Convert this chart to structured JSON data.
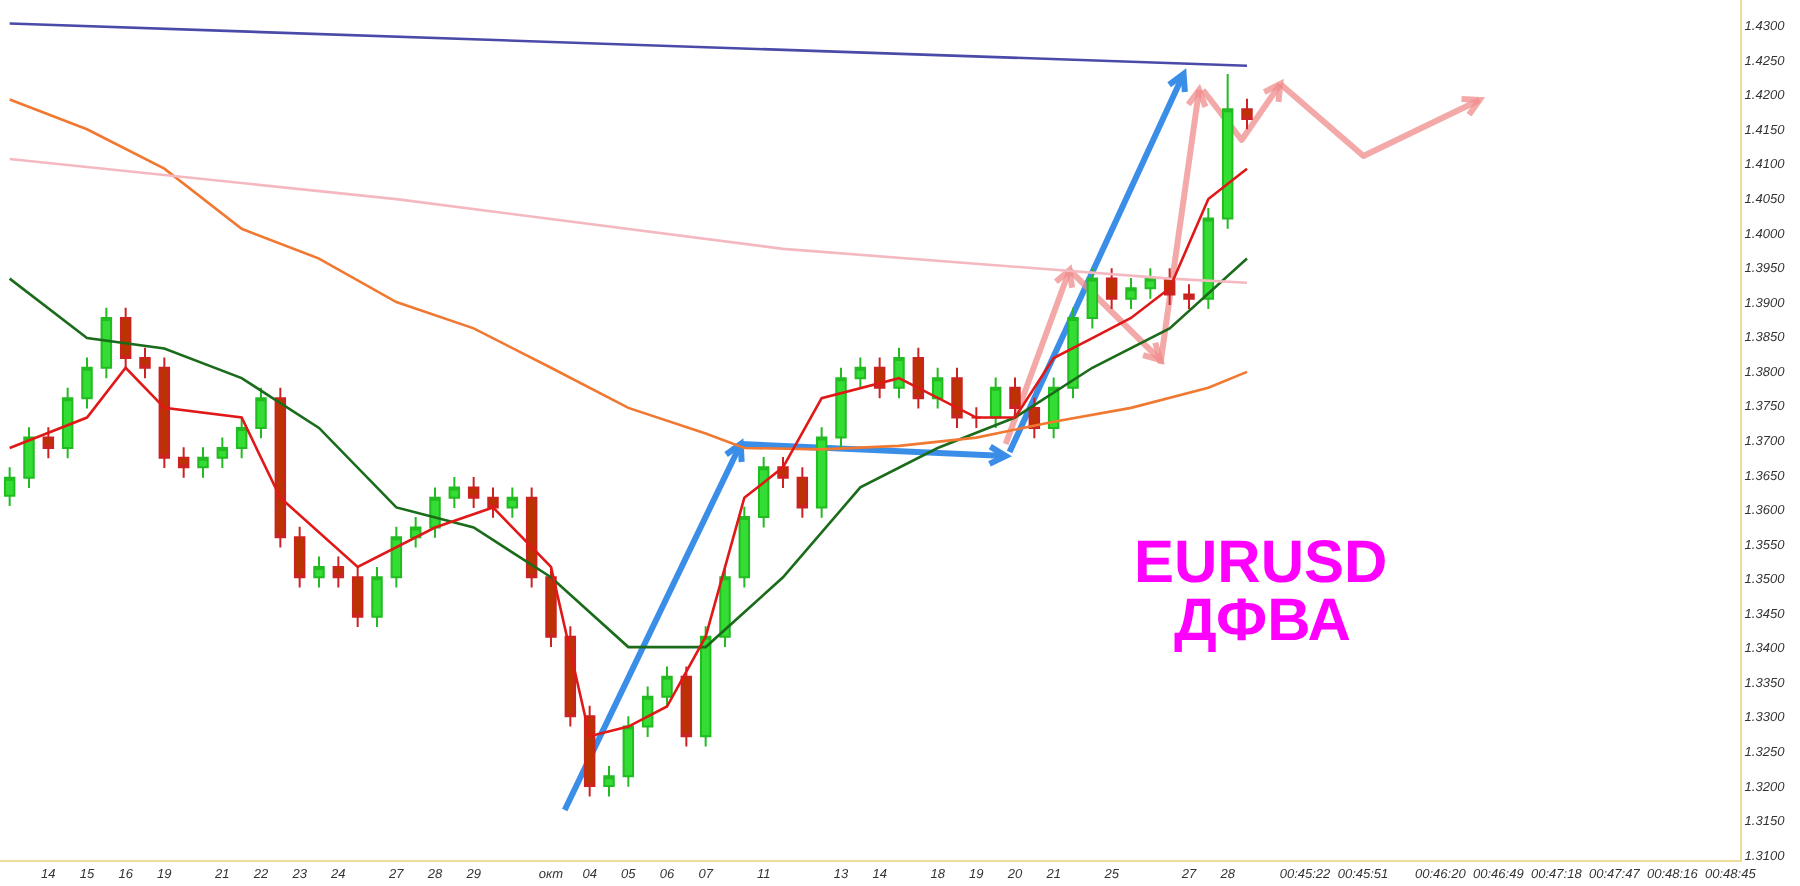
{
  "chart_data": {
    "type": "candlestick",
    "categories": [
      null,
      null,
      "14",
      null,
      "15",
      null,
      "16",
      null,
      "19",
      null,
      null,
      "21",
      null,
      "22",
      null,
      "23",
      null,
      "24",
      null,
      null,
      "27",
      null,
      "28",
      null,
      "29",
      null,
      null,
      null,
      "окт",
      null,
      "04",
      null,
      "05",
      null,
      "06",
      null,
      "07",
      null,
      null,
      "11",
      null,
      null,
      null,
      "13",
      null,
      "14",
      null,
      null,
      "18",
      null,
      "19",
      null,
      "20",
      null,
      "21",
      null,
      null,
      "25",
      null,
      null,
      null,
      "27",
      null,
      "28",
      null,
      null,
      null,
      "00:45:22",
      null,
      null,
      "00:45:51",
      null,
      null,
      null,
      "00:46:20",
      null,
      null,
      "00:46:49",
      null,
      null,
      "00:47:18",
      null,
      null,
      "00:47:47",
      null,
      null,
      "00:48:16",
      null,
      null,
      "00:48:45"
    ],
    "ohlc": [
      [
        1.362,
        1.3661,
        1.3605,
        1.3646
      ],
      [
        1.3646,
        1.3719,
        1.3631,
        1.3704
      ],
      [
        1.3704,
        1.3719,
        1.3674,
        1.3689
      ],
      [
        1.3689,
        1.3776,
        1.3674,
        1.3761
      ],
      [
        1.3761,
        1.382,
        1.3746,
        1.3805
      ],
      [
        1.3805,
        1.3892,
        1.379,
        1.3877
      ],
      [
        1.3877,
        1.3892,
        1.3804,
        1.3819
      ],
      [
        1.3819,
        1.3834,
        1.379,
        1.3805
      ],
      [
        1.3805,
        1.382,
        1.366,
        1.3675
      ],
      [
        1.3675,
        1.369,
        1.3646,
        1.3661
      ],
      [
        1.3661,
        1.369,
        1.3646,
        1.3675
      ],
      [
        1.3675,
        1.3704,
        1.366,
        1.3689
      ],
      [
        1.3689,
        1.3733,
        1.3674,
        1.3718
      ],
      [
        1.3718,
        1.3776,
        1.3703,
        1.3761
      ],
      [
        1.3761,
        1.3776,
        1.3545,
        1.356
      ],
      [
        1.356,
        1.3575,
        1.3487,
        1.3502
      ],
      [
        1.3502,
        1.3532,
        1.3487,
        1.3517
      ],
      [
        1.3517,
        1.3532,
        1.3487,
        1.3502
      ],
      [
        1.3502,
        1.3517,
        1.343,
        1.3445
      ],
      [
        1.3445,
        1.3517,
        1.343,
        1.3502
      ],
      [
        1.3502,
        1.3575,
        1.3487,
        1.356
      ],
      [
        1.356,
        1.3589,
        1.3545,
        1.3574
      ],
      [
        1.3574,
        1.3632,
        1.3559,
        1.3617
      ],
      [
        1.3617,
        1.3647,
        1.3602,
        1.3632
      ],
      [
        1.3632,
        1.3647,
        1.3602,
        1.3617
      ],
      [
        1.3617,
        1.3632,
        1.3588,
        1.3603
      ],
      [
        1.3603,
        1.3632,
        1.3588,
        1.3617
      ],
      [
        1.3617,
        1.3632,
        1.3487,
        1.3502
      ],
      [
        1.3502,
        1.3517,
        1.3401,
        1.3416
      ],
      [
        1.3416,
        1.3431,
        1.3286,
        1.3301
      ],
      [
        1.3301,
        1.3316,
        1.3185,
        1.32
      ],
      [
        1.32,
        1.3229,
        1.3185,
        1.3214
      ],
      [
        1.3214,
        1.3301,
        1.3199,
        1.3286
      ],
      [
        1.3286,
        1.3344,
        1.3271,
        1.3329
      ],
      [
        1.3329,
        1.3373,
        1.3314,
        1.3358
      ],
      [
        1.3358,
        1.3373,
        1.3257,
        1.3272
      ],
      [
        1.3272,
        1.3431,
        1.3257,
        1.3416
      ],
      [
        1.3416,
        1.3517,
        1.3401,
        1.3502
      ],
      [
        1.3502,
        1.3604,
        1.3487,
        1.3589
      ],
      [
        1.3589,
        1.3676,
        1.3574,
        1.3661
      ],
      [
        1.3661,
        1.3676,
        1.3631,
        1.3646
      ],
      [
        1.3646,
        1.3661,
        1.3588,
        1.3603
      ],
      [
        1.3603,
        1.3719,
        1.3588,
        1.3704
      ],
      [
        1.3704,
        1.3805,
        1.3689,
        1.379
      ],
      [
        1.379,
        1.382,
        1.3775,
        1.3805
      ],
      [
        1.3805,
        1.382,
        1.3761,
        1.3776
      ],
      [
        1.3776,
        1.3834,
        1.3761,
        1.3819
      ],
      [
        1.3819,
        1.3834,
        1.3746,
        1.3761
      ],
      [
        1.3761,
        1.3805,
        1.3746,
        1.379
      ],
      [
        1.379,
        1.3805,
        1.3718,
        1.3733
      ],
      [
        1.3733,
        1.3748,
        1.3718,
        1.3733
      ],
      [
        1.3733,
        1.3791,
        1.3718,
        1.3776
      ],
      [
        1.3776,
        1.3791,
        1.3732,
        1.3747
      ],
      [
        1.3747,
        1.3762,
        1.3703,
        1.3718
      ],
      [
        1.3718,
        1.3791,
        1.3703,
        1.3776
      ],
      [
        1.3776,
        1.3892,
        1.3761,
        1.3877
      ],
      [
        1.3877,
        1.3949,
        1.3862,
        1.3934
      ],
      [
        1.3934,
        1.3949,
        1.389,
        1.3905
      ],
      [
        1.3905,
        1.3935,
        1.389,
        1.392
      ],
      [
        1.392,
        1.3949,
        1.3905,
        1.3934
      ],
      [
        1.3934,
        1.3949,
        1.3896,
        1.3911
      ],
      [
        1.3911,
        1.3926,
        1.389,
        1.3905
      ],
      [
        1.3905,
        1.4036,
        1.389,
        1.4021
      ],
      [
        1.4021,
        1.423,
        1.4006,
        1.4179
      ],
      [
        1.4179,
        1.4194,
        1.415,
        1.4165
      ],
      null,
      null,
      null,
      null,
      null,
      null,
      null,
      null,
      null,
      null,
      null,
      null,
      null,
      null,
      null,
      null,
      null,
      null,
      null,
      null,
      null,
      null,
      null,
      null,
      null
    ],
    "series": [
      {
        "type": "line",
        "color": "#1a6b1a",
        "values": [
          1.3934,
          null,
          null,
          null,
          1.3848,
          null,
          null,
          null,
          1.3833,
          null,
          null,
          null,
          1.379,
          null,
          null,
          null,
          1.3718,
          null,
          null,
          null,
          1.3603,
          null,
          null,
          null,
          1.3574,
          null,
          null,
          null,
          1.3502,
          null,
          null,
          null,
          1.3401,
          null,
          null,
          null,
          1.3401,
          null,
          null,
          null,
          1.3502,
          null,
          null,
          null,
          1.3632,
          null,
          null,
          null,
          1.3689,
          null,
          null,
          null,
          1.3733,
          null,
          null,
          null,
          1.3805,
          null,
          null,
          null,
          1.3862,
          null,
          null,
          null,
          1.3963,
          null,
          null,
          null,
          null,
          null,
          null,
          null,
          null,
          null,
          null,
          null,
          null,
          null,
          null,
          null,
          null,
          null,
          null,
          null,
          null,
          null,
          null,
          null,
          null,
          null
        ]
      },
      {
        "type": "line",
        "color": "#f07830",
        "values": [
          1.4193,
          null,
          null,
          null,
          1.415,
          null,
          null,
          null,
          1.4093,
          null,
          null,
          null,
          1.4006,
          null,
          null,
          null,
          1.3963,
          null,
          null,
          null,
          1.39,
          null,
          null,
          null,
          1.3862,
          null,
          null,
          null,
          1.3805,
          null,
          null,
          null,
          1.3747,
          null,
          null,
          null,
          1.371,
          null,
          1.3689,
          null,
          null,
          null,
          1.3687,
          null,
          null,
          null,
          1.3692,
          null,
          null,
          null,
          1.3704,
          null,
          null,
          null,
          1.3727,
          null,
          null,
          null,
          1.3747,
          null,
          null,
          null,
          1.3776,
          null,
          1.3799,
          null,
          null,
          null,
          null,
          null,
          null,
          null,
          null,
          null,
          null,
          null,
          null,
          null,
          null,
          null,
          null,
          null,
          null,
          null,
          null,
          null,
          null,
          null,
          null,
          null
        ]
      },
      {
        "type": "line",
        "color": "#f4b8c0",
        "values": [
          1.4107,
          null,
          null,
          null,
          null,
          null,
          null,
          null,
          null,
          null,
          null,
          null,
          null,
          null,
          null,
          null,
          null,
          null,
          null,
          null,
          1.4049,
          null,
          null,
          null,
          null,
          null,
          null,
          null,
          null,
          null,
          null,
          null,
          null,
          null,
          null,
          null,
          null,
          null,
          null,
          null,
          1.3977,
          null,
          null,
          null,
          null,
          null,
          null,
          null,
          null,
          null,
          null,
          null,
          null,
          null,
          null,
          null,
          null,
          null,
          null,
          null,
          1.3934,
          null,
          null,
          null,
          1.3928,
          null,
          null,
          null,
          null,
          null,
          null,
          null,
          null,
          null,
          null,
          null,
          null,
          null,
          null,
          null,
          null,
          null,
          null,
          null,
          null,
          null,
          null,
          null,
          null,
          null
        ]
      },
      {
        "type": "line",
        "color": "#4a4aa8",
        "values": [
          1.4303,
          null,
          null,
          null,
          null,
          null,
          null,
          null,
          null,
          null,
          null,
          null,
          null,
          null,
          null,
          null,
          null,
          null,
          null,
          null,
          null,
          null,
          null,
          null,
          null,
          null,
          null,
          null,
          null,
          null,
          null,
          null,
          null,
          null,
          null,
          null,
          null,
          null,
          null,
          null,
          null,
          null,
          null,
          null,
          null,
          null,
          null,
          null,
          null,
          null,
          null,
          null,
          null,
          null,
          null,
          null,
          null,
          null,
          null,
          null,
          null,
          null,
          null,
          null,
          1.4242,
          null,
          null,
          null,
          null,
          null,
          null,
          null,
          null,
          null,
          null,
          null,
          null,
          null,
          null,
          null,
          null,
          null,
          null,
          null,
          null,
          null,
          null,
          null,
          null,
          null
        ]
      },
      {
        "type": "line",
        "color": "#e01818",
        "values": [
          1.3689,
          null,
          null,
          null,
          1.3733,
          null,
          1.3805,
          null,
          1.3747,
          null,
          null,
          null,
          1.3733,
          null,
          1.3617,
          null,
          null,
          null,
          1.3517,
          null,
          null,
          null,
          1.3574,
          null,
          null,
          1.3603,
          null,
          null,
          1.3517,
          null,
          1.3272,
          null,
          1.3286,
          null,
          1.3315,
          null,
          1.3416,
          null,
          1.3617,
          null,
          1.3661,
          null,
          1.3761,
          null,
          null,
          null,
          1.379,
          null,
          null,
          null,
          1.3733,
          null,
          1.3733,
          null,
          1.3819,
          null,
          1.3848,
          null,
          1.3877,
          null,
          1.392,
          null,
          1.4049,
          null,
          1.4093,
          null,
          null,
          null,
          null,
          null,
          null,
          null,
          null,
          null,
          null,
          null,
          null,
          null,
          null,
          null,
          null,
          null,
          null,
          null,
          null,
          null,
          null,
          null,
          null,
          null
        ]
      }
    ],
    "ylim": [
      1.3093,
      1.4337
    ],
    "yticks": [
      {
        "value": 1.31,
        "label": "1.3100"
      },
      {
        "value": 1.315,
        "label": "1.3150"
      },
      {
        "value": 1.32,
        "label": "1.3200"
      },
      {
        "value": 1.325,
        "label": "1.3250"
      },
      {
        "value": 1.33,
        "label": "1.3300"
      },
      {
        "value": 1.335,
        "label": "1.3350"
      },
      {
        "value": 1.34,
        "label": "1.3400"
      },
      {
        "value": 1.345,
        "label": "1.3450"
      },
      {
        "value": 1.35,
        "label": "1.3500"
      },
      {
        "value": 1.355,
        "label": "1.3550"
      },
      {
        "value": 1.36,
        "label": "1.3600"
      },
      {
        "value": 1.365,
        "label": "1.3650"
      },
      {
        "value": 1.37,
        "label": "1.3700"
      },
      {
        "value": 1.375,
        "label": "1.3750"
      },
      {
        "value": 1.38,
        "label": "1.3800"
      },
      {
        "value": 1.385,
        "label": "1.3850"
      },
      {
        "value": 1.39,
        "label": "1.3900"
      },
      {
        "value": 1.395,
        "label": "1.3950"
      },
      {
        "value": 1.4,
        "label": "1.4000"
      },
      {
        "value": 1.405,
        "label": "1.4050"
      },
      {
        "value": 1.41,
        "label": "1.4100"
      },
      {
        "value": 1.415,
        "label": "1.4150"
      },
      {
        "value": 1.42,
        "label": "1.4200"
      },
      {
        "value": 1.425,
        "label": "1.4250"
      },
      {
        "value": 1.43,
        "label": "1.4300"
      }
    ],
    "annotations": [
      "EURUSD",
      "ДФВА"
    ],
    "grid": false
  }
}
